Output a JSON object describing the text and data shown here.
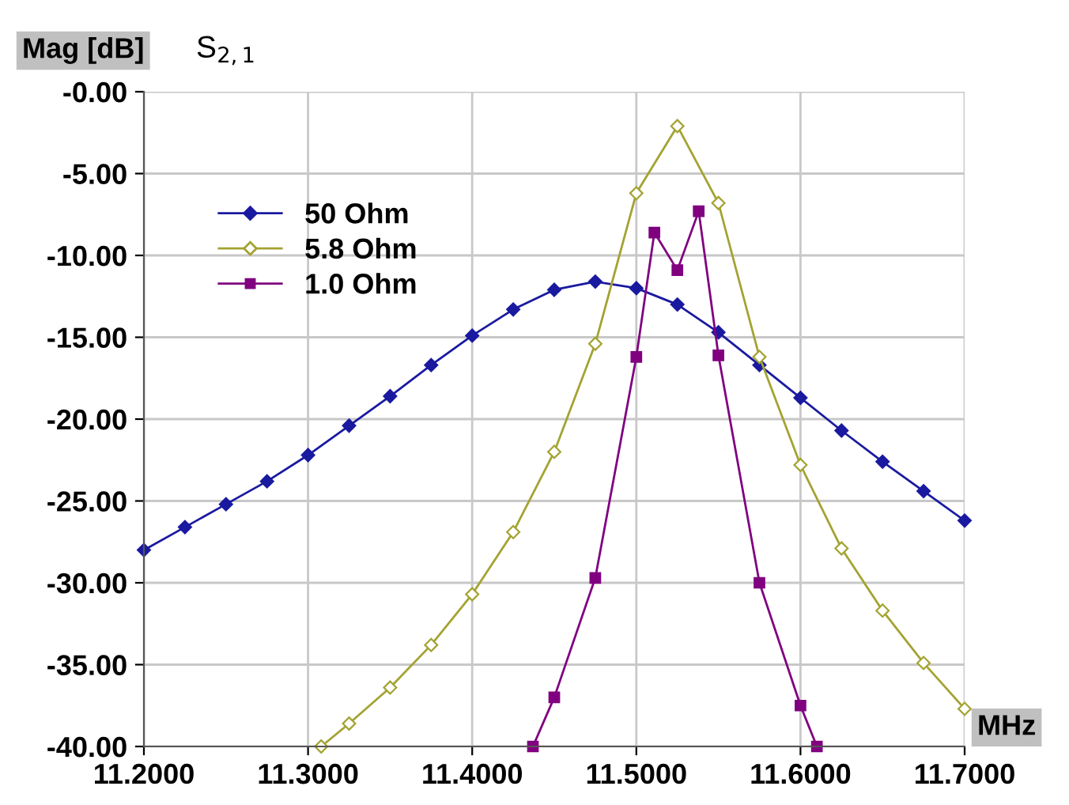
{
  "chart_data": {
    "type": "line",
    "title": "S$_{2,1}$",
    "ylabel": "Mag [dB]",
    "xlabel": "MHz",
    "xlim": [
      11.2,
      11.7
    ],
    "ylim": [
      -40,
      0
    ],
    "xticks": [
      {
        "value": 11.2,
        "label": "11.2000"
      },
      {
        "value": 11.3,
        "label": "11.3000"
      },
      {
        "value": 11.4,
        "label": "11.4000"
      },
      {
        "value": 11.5,
        "label": "11.5000"
      },
      {
        "value": 11.6,
        "label": "11.6000"
      },
      {
        "value": 11.7,
        "label": "11.7000"
      }
    ],
    "yticks": [
      {
        "value": 0,
        "label": "-0.00"
      },
      {
        "value": -5,
        "label": "-5.00"
      },
      {
        "value": -10,
        "label": "-10.00"
      },
      {
        "value": -15,
        "label": "-15.00"
      },
      {
        "value": -20,
        "label": "-20.00"
      },
      {
        "value": -25,
        "label": "-25.00"
      },
      {
        "value": -30,
        "label": "-30.00"
      },
      {
        "value": -35,
        "label": "-35.00"
      },
      {
        "value": -40,
        "label": "-40.00"
      }
    ],
    "grid": true,
    "legend": "top left",
    "series": [
      {
        "name": "50 Ohm",
        "color": "#1a1aa0",
        "marker": "diamond",
        "x": [
          11.2,
          11.225,
          11.25,
          11.275,
          11.3,
          11.325,
          11.35,
          11.375,
          11.4,
          11.425,
          11.45,
          11.475,
          11.5,
          11.525,
          11.55,
          11.575,
          11.6,
          11.625,
          11.65,
          11.675,
          11.7
        ],
        "values": [
          -28.0,
          -26.6,
          -25.2,
          -23.8,
          -22.2,
          -20.4,
          -18.6,
          -16.7,
          -14.9,
          -13.3,
          -12.1,
          -11.6,
          -12.0,
          -13.0,
          -14.7,
          -16.7,
          -18.7,
          -20.7,
          -22.6,
          -24.4,
          -26.2
        ]
      },
      {
        "name": "5.8 Ohm",
        "color": "#a3a332",
        "marker": "diamond",
        "x": [
          11.308,
          11.325,
          11.35,
          11.375,
          11.4,
          11.425,
          11.45,
          11.475,
          11.5,
          11.525,
          11.55,
          11.575,
          11.6,
          11.625,
          11.65,
          11.675,
          11.7
        ],
        "values": [
          -40,
          -38.6,
          -36.4,
          -33.8,
          -30.7,
          -26.9,
          -22.0,
          -15.4,
          -6.2,
          -2.1,
          -6.8,
          -16.2,
          -22.8,
          -27.9,
          -31.7,
          -34.9,
          -37.7
        ]
      },
      {
        "name": "1.0 Ohm",
        "color": "#800080",
        "marker": "square",
        "x": [
          11.437,
          11.45,
          11.475,
          11.5,
          11.511,
          11.525,
          11.538,
          11.55,
          11.575,
          11.6,
          11.61
        ],
        "values": [
          -40,
          -37.0,
          -29.7,
          -16.2,
          -8.6,
          -10.9,
          -7.3,
          -16.1,
          -30.0,
          -37.5,
          -40
        ]
      }
    ]
  }
}
